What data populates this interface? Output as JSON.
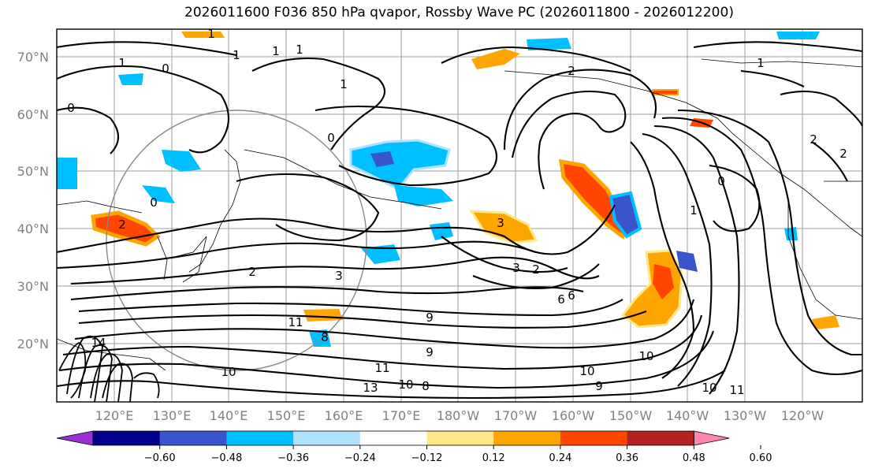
{
  "title": "2026011600 F036 850 hPa qvapor, Rossby Wave PC (2026011800 - 2026012200)",
  "lat_labels": [
    "70°N",
    "60°N",
    "50°N",
    "40°N",
    "30°N",
    "20°N"
  ],
  "lon_labels": [
    "120°E",
    "130°E",
    "140°E",
    "150°E",
    "160°E",
    "170°E",
    "180°W",
    "170°W",
    "160°W",
    "150°W",
    "140°W",
    "130°W",
    "120°W"
  ],
  "contour_labels": [
    "1",
    "1",
    "1",
    "0",
    "1",
    "1",
    "1",
    "2",
    "1",
    "2",
    "2",
    "0",
    "0",
    "0",
    "0",
    "1",
    "2",
    "3",
    "3",
    "2",
    "3",
    "2",
    "6",
    "6",
    "10",
    "10",
    "11",
    "11",
    "9",
    "9",
    "10",
    "11",
    "13",
    "14",
    "8",
    "10",
    "9",
    "8",
    "10"
  ],
  "colorbar": {
    "ticks": [
      "−0.60",
      "−0.48",
      "−0.36",
      "−0.24",
      "−0.12",
      "0.12",
      "0.24",
      "0.36",
      "0.48",
      "0.60"
    ],
    "colors": [
      "#9b30d8",
      "#00008b",
      "#3a55cc",
      "#00bfff",
      "#b0e2ff",
      "#ffffff",
      "#ffe88a",
      "#ffa500",
      "#ff4500",
      "#b22222",
      "#ff86b0"
    ]
  },
  "chart_data": {
    "type": "map",
    "variable": "850 hPa qvapor, Rossby Wave PC",
    "projection": "cylindrical",
    "lat_range": [
      10,
      75
    ],
    "lon_range": [
      112,
      252
    ],
    "colorbar_levels": [
      -0.6,
      -0.48,
      -0.36,
      -0.24,
      -0.12,
      0.12,
      0.24,
      0.36,
      0.48,
      0.6
    ]
  }
}
